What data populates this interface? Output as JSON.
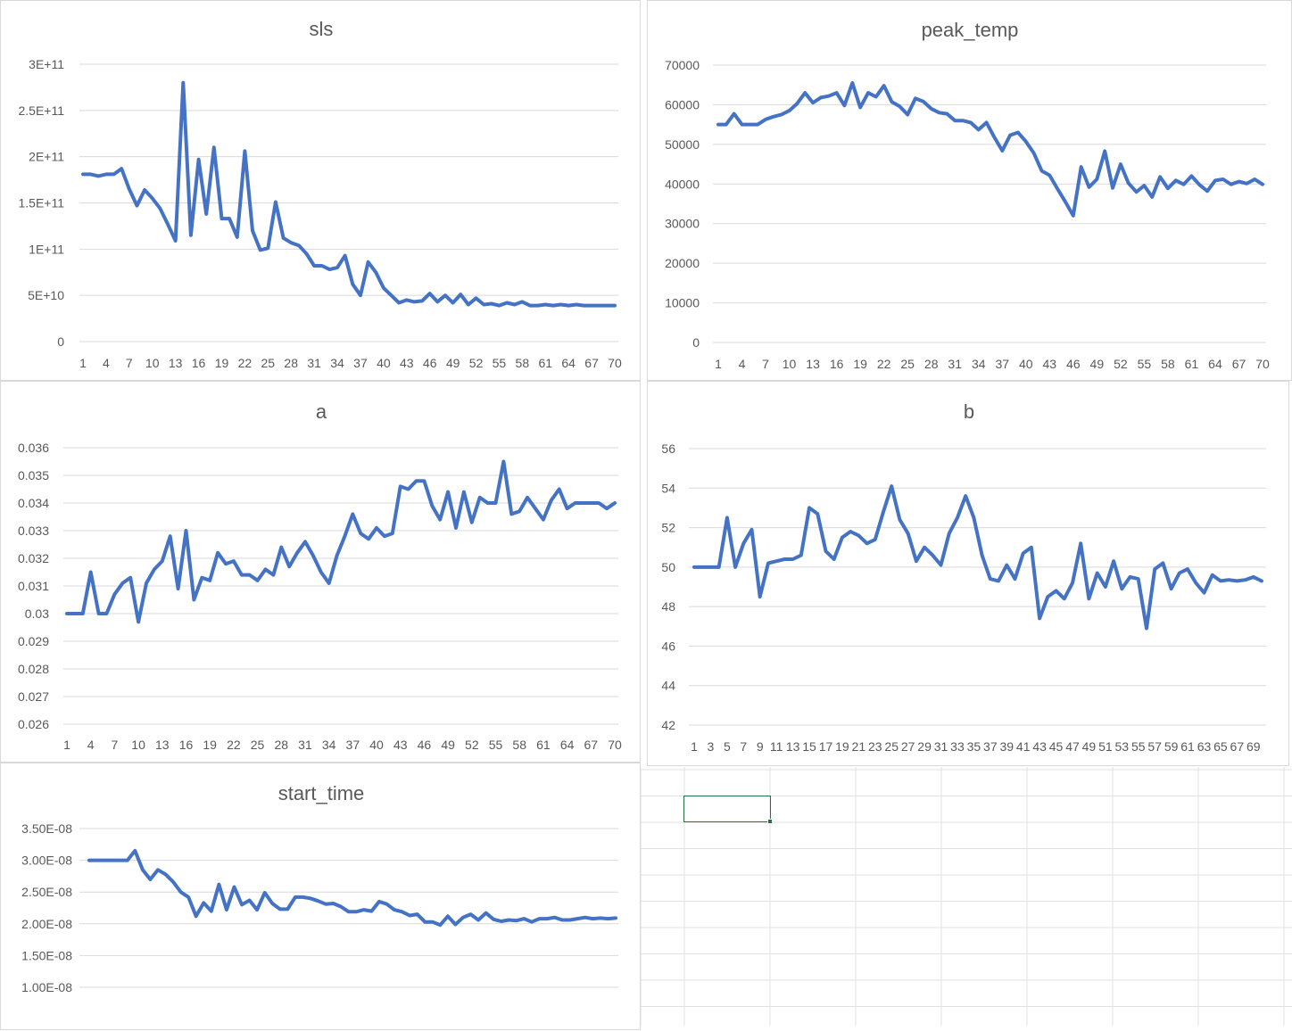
{
  "colors": {
    "series": "#4472C4",
    "gridline": "#d9d9d9",
    "axis": "#d9d9d9",
    "text": "#595959",
    "selection": "#217346",
    "cellgrid": "#e1e1e1"
  },
  "chart_data": [
    {
      "id": "sls",
      "type": "line",
      "title": "sls",
      "xlabel": "",
      "ylabel": "",
      "ylim": [
        0,
        300000000000
      ],
      "grid": true,
      "legend": "none",
      "x_tick_labels": [
        "1",
        "4",
        "7",
        "10",
        "13",
        "16",
        "19",
        "22",
        "25",
        "28",
        "31",
        "34",
        "37",
        "40",
        "43",
        "46",
        "49",
        "52",
        "55",
        "58",
        "61",
        "64",
        "67",
        "70"
      ],
      "y_tick_labels": [
        "0",
        "5E+10",
        "1E+11",
        "1.5E+11",
        "2E+11",
        "2.5E+11",
        "3E+11"
      ],
      "y_tick_values": [
        0,
        50000000000,
        100000000000,
        150000000000,
        200000000000,
        250000000000,
        300000000000
      ],
      "series": [
        {
          "values": [
            181000000000,
            181000000000,
            179000000000,
            181000000000,
            181000000000,
            187000000000,
            165000000000,
            147000000000,
            164000000000,
            155000000000,
            144000000000,
            127000000000,
            109000000000,
            280000000000,
            115000000000,
            197000000000,
            138000000000,
            210000000000,
            133000000000,
            133000000000,
            113000000000,
            206000000000,
            120000000000,
            99000000000,
            101000000000,
            151000000000,
            112000000000,
            107000000000,
            104000000000,
            95000000000,
            82000000000,
            82000000000,
            78000000000,
            80000000000,
            93000000000,
            62000000000,
            50000000000,
            86000000000,
            75000000000,
            58000000000,
            50000000000,
            42000000000,
            45000000000,
            43000000000,
            44000000000,
            52000000000,
            43000000000,
            50000000000,
            42000000000,
            51000000000,
            40000000000,
            47000000000,
            40000000000,
            41000000000,
            39000000000,
            42000000000,
            40000000000,
            43000000000,
            39000000000,
            39000000000,
            40000000000,
            39000000000,
            40000000000,
            39000000000,
            40000000000,
            39000000000,
            39000000000,
            39000000000,
            39000000000,
            39000000000
          ]
        }
      ]
    },
    {
      "id": "peak_temp",
      "type": "line",
      "title": "peak_temp",
      "xlabel": "",
      "ylabel": "",
      "ylim": [
        0,
        70000
      ],
      "grid": true,
      "legend": "none",
      "x_tick_labels": [
        "1",
        "4",
        "7",
        "10",
        "13",
        "16",
        "19",
        "22",
        "25",
        "28",
        "31",
        "34",
        "37",
        "40",
        "43",
        "46",
        "49",
        "52",
        "55",
        "58",
        "61",
        "64",
        "67",
        "70"
      ],
      "y_tick_labels": [
        "0",
        "10000",
        "20000",
        "30000",
        "40000",
        "50000",
        "60000",
        "70000"
      ],
      "y_tick_values": [
        0,
        10000,
        20000,
        30000,
        40000,
        50000,
        60000,
        70000
      ],
      "series": [
        {
          "values": [
            55000,
            55000,
            57700,
            55000,
            55000,
            55000,
            56300,
            57000,
            57500,
            58500,
            60300,
            63000,
            60500,
            61800,
            62200,
            63000,
            59800,
            65500,
            59300,
            63000,
            62000,
            64800,
            60700,
            59600,
            57500,
            61600,
            60800,
            59000,
            58000,
            57700,
            56000,
            56000,
            55500,
            53700,
            55500,
            51800,
            48400,
            52300,
            53000,
            50700,
            47800,
            43300,
            42200,
            38800,
            35500,
            32000,
            44300,
            39200,
            41200,
            48300,
            39000,
            45000,
            40200,
            38000,
            39600,
            36700,
            41800,
            38900,
            40900,
            39900,
            42000,
            39800,
            38200,
            40900,
            41200,
            39900,
            40600,
            40100,
            41200,
            39900
          ]
        }
      ]
    },
    {
      "id": "a",
      "type": "line",
      "title": "a",
      "xlabel": "",
      "ylabel": "",
      "ylim": [
        0.026,
        0.036
      ],
      "grid": true,
      "legend": "none",
      "x_tick_labels": [
        "1",
        "4",
        "7",
        "10",
        "13",
        "16",
        "19",
        "22",
        "25",
        "28",
        "31",
        "34",
        "37",
        "40",
        "43",
        "46",
        "49",
        "52",
        "55",
        "58",
        "61",
        "64",
        "67",
        "70"
      ],
      "y_tick_labels": [
        "0.026",
        "0.027",
        "0.028",
        "0.029",
        "0.03",
        "0.031",
        "0.032",
        "0.033",
        "0.034",
        "0.035",
        "0.036"
      ],
      "y_tick_values": [
        0.026,
        0.027,
        0.028,
        0.029,
        0.03,
        0.031,
        0.032,
        0.033,
        0.034,
        0.035,
        0.036
      ],
      "series": [
        {
          "values": [
            0.03,
            0.03,
            0.03,
            0.0315,
            0.03,
            0.03,
            0.0307,
            0.0311,
            0.0313,
            0.0297,
            0.0311,
            0.0316,
            0.0319,
            0.0328,
            0.0309,
            0.033,
            0.0305,
            0.0313,
            0.0312,
            0.0322,
            0.0318,
            0.0319,
            0.0314,
            0.0314,
            0.0312,
            0.0316,
            0.0314,
            0.0324,
            0.0317,
            0.0322,
            0.0326,
            0.0321,
            0.0315,
            0.0311,
            0.0321,
            0.0328,
            0.0336,
            0.0329,
            0.0327,
            0.0331,
            0.0328,
            0.0329,
            0.0346,
            0.0345,
            0.0348,
            0.0348,
            0.0339,
            0.0334,
            0.0344,
            0.0331,
            0.0344,
            0.0333,
            0.0342,
            0.034,
            0.034,
            0.0355,
            0.0336,
            0.0337,
            0.0342,
            0.0338,
            0.0334,
            0.0341,
            0.0345,
            0.0338,
            0.034,
            0.034,
            0.034,
            0.034,
            0.0338,
            0.034
          ]
        }
      ]
    },
    {
      "id": "b",
      "type": "line",
      "title": "b",
      "xlabel": "",
      "ylabel": "",
      "ylim": [
        42,
        56
      ],
      "grid": true,
      "legend": "none",
      "x_tick_labels": [
        "1",
        "3",
        "5",
        "7",
        "9",
        "11",
        "13",
        "15",
        "17",
        "19",
        "21",
        "23",
        "25",
        "27",
        "29",
        "31",
        "33",
        "35",
        "37",
        "39",
        "41",
        "43",
        "45",
        "47",
        "49",
        "51",
        "53",
        "55",
        "57",
        "59",
        "61",
        "63",
        "65",
        "67",
        "69"
      ],
      "y_tick_labels": [
        "42",
        "44",
        "46",
        "48",
        "50",
        "52",
        "54",
        "56"
      ],
      "y_tick_values": [
        42,
        44,
        46,
        48,
        50,
        52,
        54,
        56
      ],
      "series": [
        {
          "values": [
            50,
            50,
            50,
            50,
            52.5,
            50,
            51.2,
            51.9,
            48.5,
            50.2,
            50.3,
            50.4,
            50.4,
            50.6,
            53,
            52.7,
            50.8,
            50.4,
            51.5,
            51.8,
            51.6,
            51.2,
            51.4,
            52.8,
            54.1,
            52.4,
            51.7,
            50.3,
            51,
            50.6,
            50.1,
            51.7,
            52.5,
            53.6,
            52.5,
            50.6,
            49.4,
            49.3,
            50.1,
            49.4,
            50.7,
            51,
            47.4,
            48.5,
            48.8,
            48.4,
            49.2,
            51.2,
            48.4,
            49.7,
            49,
            50.3,
            48.9,
            49.5,
            49.4,
            46.9,
            49.9,
            50.2,
            48.9,
            49.7,
            49.9,
            49.2,
            48.7,
            49.6,
            49.3,
            49.35,
            49.3,
            49.35,
            49.5,
            49.3
          ]
        }
      ]
    },
    {
      "id": "start_time",
      "type": "line",
      "title": "start_time",
      "xlabel": "",
      "ylabel": "",
      "ylim": [
        1e-08,
        3.5e-08
      ],
      "grid": true,
      "legend": "none",
      "x_tick_labels": [],
      "y_tick_labels": [
        "1.00E-08",
        "1.50E-08",
        "2.00E-08",
        "2.50E-08",
        "3.00E-08",
        "3.50E-08"
      ],
      "y_tick_values": [
        1e-08,
        1.5e-08,
        2e-08,
        2.5e-08,
        3e-08,
        3.5e-08
      ],
      "series": [
        {
          "values": [
            3e-08,
            3e-08,
            3e-08,
            3e-08,
            3e-08,
            3e-08,
            3.15e-08,
            2.85e-08,
            2.7e-08,
            2.85e-08,
            2.78e-08,
            2.66e-08,
            2.5e-08,
            2.42e-08,
            2.12e-08,
            2.33e-08,
            2.2e-08,
            2.62e-08,
            2.22e-08,
            2.58e-08,
            2.3e-08,
            2.37e-08,
            2.22e-08,
            2.49e-08,
            2.32e-08,
            2.23e-08,
            2.23e-08,
            2.42e-08,
            2.42e-08,
            2.4e-08,
            2.36e-08,
            2.31e-08,
            2.32e-08,
            2.27e-08,
            2.19e-08,
            2.19e-08,
            2.22e-08,
            2.2e-08,
            2.35e-08,
            2.31e-08,
            2.22e-08,
            2.19e-08,
            2.13e-08,
            2.15e-08,
            2.03e-08,
            2.03e-08,
            1.98e-08,
            2.12e-08,
            1.99e-08,
            2.1e-08,
            2.15e-08,
            2.06e-08,
            2.17e-08,
            2.07e-08,
            2.04e-08,
            2.06e-08,
            2.05e-08,
            2.08e-08,
            2.03e-08,
            2.08e-08,
            2.08e-08,
            2.1e-08,
            2.06e-08,
            2.06e-08,
            2.08e-08,
            2.1e-08,
            2.08e-08,
            2.09e-08,
            2.08e-08,
            2.09e-08
          ]
        }
      ]
    }
  ]
}
